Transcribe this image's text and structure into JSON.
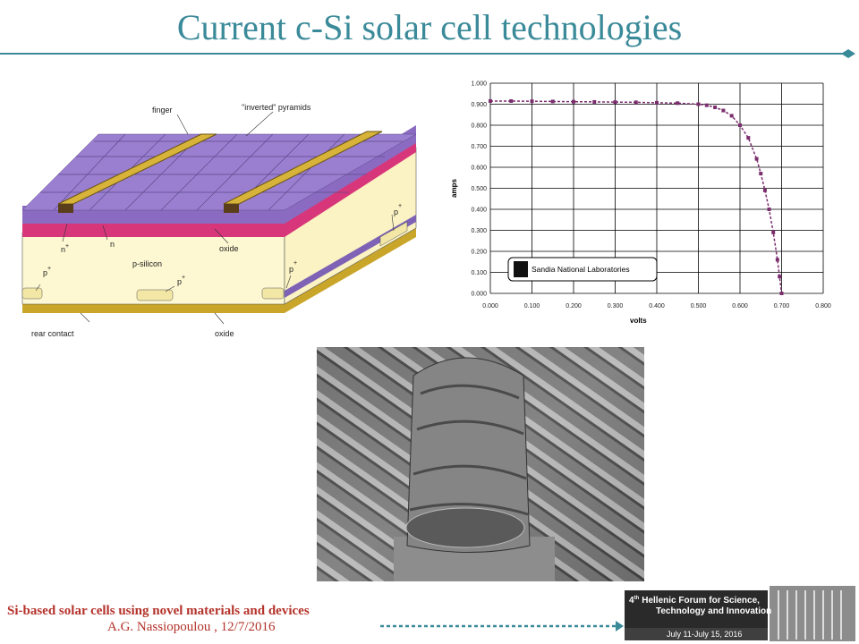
{
  "title": "Current c-Si solar cell technologies",
  "diagram": {
    "finger": "finger",
    "pyramids": "\"inverted\" pyramids",
    "n_plus": {
      "base": "n",
      "sup": "+"
    },
    "n": "n",
    "oxide_top": "oxide",
    "p_silicon": "p-silicon",
    "p_plus_1": {
      "base": "p",
      "sup": "+"
    },
    "p_plus_2": {
      "base": "p",
      "sup": "+"
    },
    "p_plus_3": {
      "base": "p",
      "sup": "+"
    },
    "p_plus_4": {
      "base": "p",
      "sup": "+"
    },
    "rear_contact": "rear contact",
    "oxide_bottom": "oxide"
  },
  "chart_data": {
    "type": "line",
    "xlabel": "volts",
    "ylabel": "amps",
    "annotation": "Sandia National Laboratories",
    "grid": true,
    "x": [
      0,
      0.05,
      0.1,
      0.15,
      0.2,
      0.25,
      0.3,
      0.35,
      0.4,
      0.45,
      0.5,
      0.52,
      0.54,
      0.56,
      0.58,
      0.6,
      0.62,
      0.64,
      0.65,
      0.66,
      0.67,
      0.68,
      0.69,
      0.695,
      0.7
    ],
    "series": [
      {
        "color": "#7b2d6e",
        "values": [
          0.915,
          0.915,
          0.914,
          0.913,
          0.912,
          0.911,
          0.91,
          0.909,
          0.907,
          0.905,
          0.9,
          0.895,
          0.885,
          0.87,
          0.845,
          0.8,
          0.74,
          0.64,
          0.57,
          0.49,
          0.4,
          0.29,
          0.16,
          0.08,
          0
        ]
      }
    ],
    "xlim": [
      0,
      0.8
    ],
    "ylim": [
      0,
      1
    ],
    "xticks": [
      {
        "value": 0,
        "label": "0.000"
      },
      {
        "value": 0.1,
        "label": "0.100"
      },
      {
        "value": 0.2,
        "label": "0.200"
      },
      {
        "value": 0.3,
        "label": "0.300"
      },
      {
        "value": 0.4,
        "label": "0.400"
      },
      {
        "value": 0.5,
        "label": "0.500"
      },
      {
        "value": 0.6,
        "label": "0.600"
      },
      {
        "value": 0.7,
        "label": "0.700"
      },
      {
        "value": 0.8,
        "label": "0.800"
      }
    ],
    "yticks": [
      {
        "value": 0,
        "label": "0.000"
      },
      {
        "value": 0.1,
        "label": "0.100"
      },
      {
        "value": 0.2,
        "label": "0.200"
      },
      {
        "value": 0.3,
        "label": "0.300"
      },
      {
        "value": 0.4,
        "label": "0.400"
      },
      {
        "value": 0.5,
        "label": "0.500"
      },
      {
        "value": 0.6,
        "label": "0.600"
      },
      {
        "value": 0.7,
        "label": "0.700"
      },
      {
        "value": 0.8,
        "label": "0.800"
      },
      {
        "value": 0.9,
        "label": "0.900"
      },
      {
        "value": 1,
        "label": "1.000"
      }
    ]
  },
  "footer": {
    "topic": "Si-based solar cells using novel materials and devices",
    "author": "A.G. Nassiopoulou ,  12/7/2016"
  },
  "logo": {
    "num": "4",
    "ord": "th",
    "line1": "Hellenic Forum for Science,",
    "line2": "Technology and Innovation",
    "dates": "July 11-July 15, 2016"
  }
}
